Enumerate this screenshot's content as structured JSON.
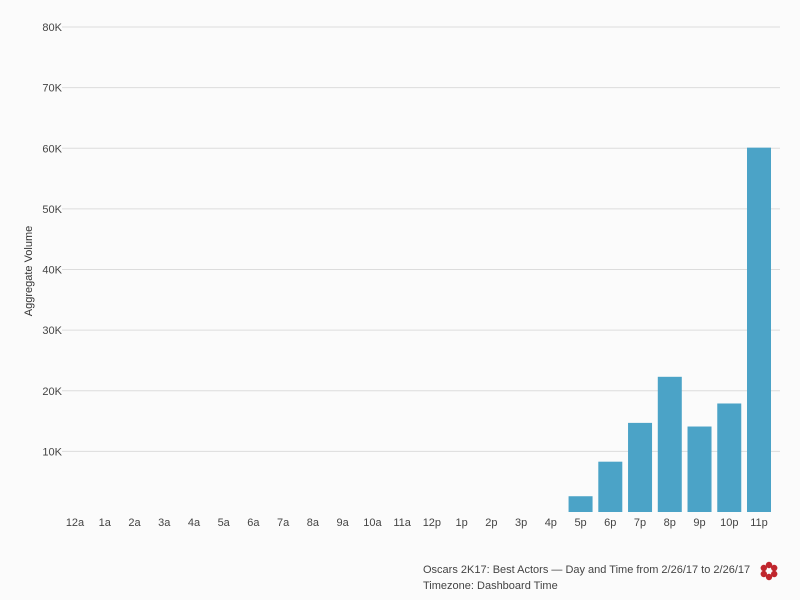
{
  "chart_data": {
    "type": "bar",
    "title": "",
    "xlabel": "",
    "ylabel": "Aggregate Volume",
    "ylim": [
      0,
      80000
    ],
    "yticks": [
      {
        "value": 10000,
        "label": "10K"
      },
      {
        "value": 20000,
        "label": "20K"
      },
      {
        "value": 30000,
        "label": "30K"
      },
      {
        "value": 40000,
        "label": "40K"
      },
      {
        "value": 50000,
        "label": "50K"
      },
      {
        "value": 60000,
        "label": "60K"
      },
      {
        "value": 70000,
        "label": "70K"
      },
      {
        "value": 80000,
        "label": "80K"
      }
    ],
    "categories": [
      "12a",
      "1a",
      "2a",
      "3a",
      "4a",
      "5a",
      "6a",
      "7a",
      "8a",
      "9a",
      "10a",
      "11a",
      "12p",
      "1p",
      "2p",
      "3p",
      "4p",
      "5p",
      "6p",
      "7p",
      "8p",
      "9p",
      "10p",
      "11p"
    ],
    "values": [
      0,
      0,
      0,
      0,
      0,
      0,
      0,
      0,
      0,
      0,
      0,
      0,
      0,
      0,
      0,
      0,
      0,
      2600,
      8300,
      14700,
      22300,
      14100,
      17900,
      60100
    ],
    "grid": true,
    "bar_color": "#4ba3c7"
  },
  "footer": {
    "title": "Oscars 2K17: Best Actors — Day and Time from 2/26/17 to 2/26/17",
    "timezone": "Timezone: Dashboard Time"
  },
  "logo_icon": "flower-logo-icon"
}
